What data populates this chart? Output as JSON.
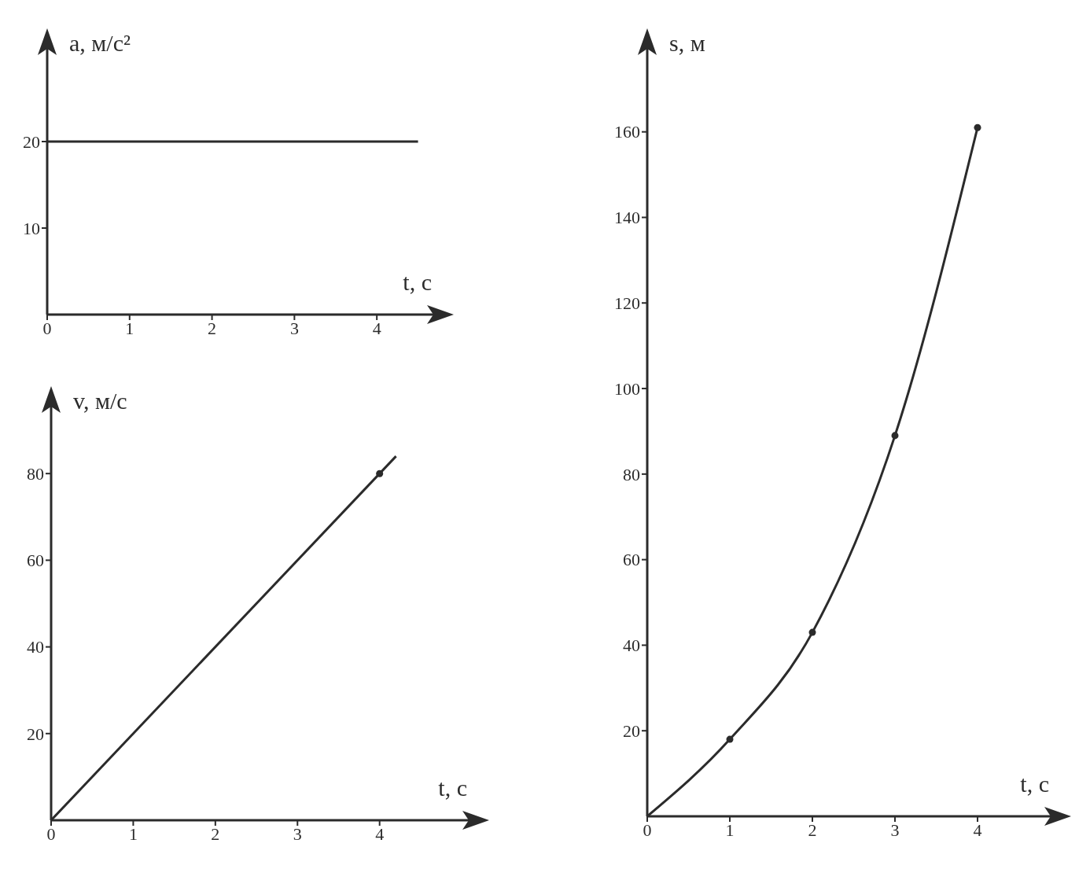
{
  "chart_data": [
    {
      "type": "line",
      "xlabel": "t, с",
      "ylabel": "a, м/с²",
      "xlim": [
        0,
        4.8
      ],
      "ylim": [
        0,
        32
      ],
      "xticks": [
        0,
        1,
        2,
        3,
        4
      ],
      "yticks": [
        10,
        20
      ],
      "series": [
        {
          "color": "#2b2b2b",
          "x": [
            0,
            4.5
          ],
          "values": [
            20,
            20
          ]
        }
      ]
    },
    {
      "type": "line",
      "xlabel": "t, с",
      "ylabel": "v, м/с",
      "xlim": [
        0,
        5.2
      ],
      "ylim": [
        0,
        98
      ],
      "xticks": [
        0,
        1,
        2,
        3,
        4
      ],
      "yticks": [
        20,
        40,
        60,
        80
      ],
      "series": [
        {
          "color": "#2b2b2b",
          "x": [
            0,
            4.2
          ],
          "values": [
            0,
            84
          ]
        },
        {
          "type": "scatter",
          "marker": "circle",
          "color": "#2b2b2b",
          "x": [
            4
          ],
          "values": [
            80
          ]
        }
      ]
    },
    {
      "type": "line",
      "xlabel": "t, с",
      "ylabel": "s, м",
      "xlim": [
        0,
        5
      ],
      "ylim": [
        0,
        182
      ],
      "xticks": [
        0,
        1,
        2,
        3,
        4
      ],
      "yticks": [
        20,
        40,
        60,
        80,
        100,
        120,
        140,
        160
      ],
      "series": [
        {
          "color": "#2b2b2b",
          "x": [
            0,
            1,
            2,
            3,
            4
          ],
          "values": [
            0,
            18,
            43,
            89,
            161
          ]
        },
        {
          "type": "scatter",
          "marker": "circle",
          "color": "#2b2b2b",
          "x": [
            1,
            2,
            3,
            4
          ],
          "values": [
            18,
            43,
            89,
            161
          ]
        }
      ]
    }
  ]
}
